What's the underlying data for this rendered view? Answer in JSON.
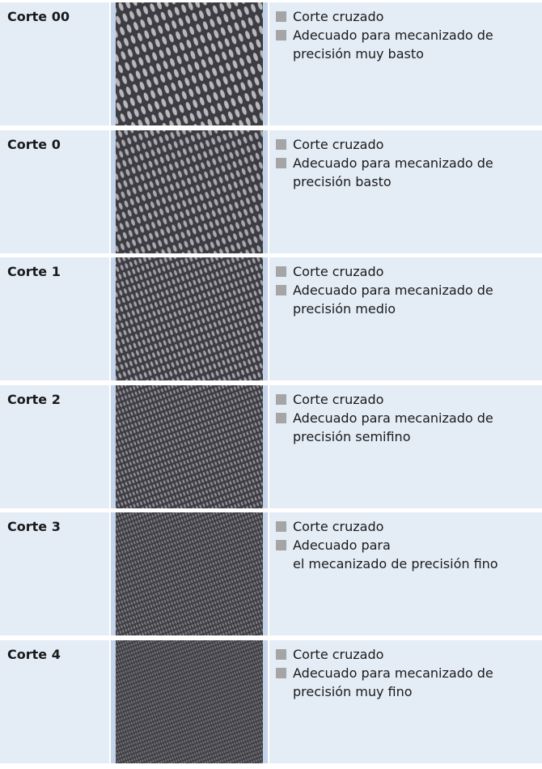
{
  "rows": [
    {
      "label": "Corte 00",
      "items": [
        [
          "Corte cruzado"
        ],
        [
          "Adecuado para mecanizado de",
          "precisión muy basto"
        ]
      ]
    },
    {
      "label": "Corte 0",
      "items": [
        [
          "Corte cruzado"
        ],
        [
          "Adecuado para mecanizado de",
          "precisión basto"
        ]
      ]
    },
    {
      "label": "Corte 1",
      "items": [
        [
          "Corte cruzado"
        ],
        [
          "Adecuado para mecanizado de",
          "precisión medio"
        ]
      ]
    },
    {
      "label": "Corte 2",
      "items": [
        [
          "Corte cruzado"
        ],
        [
          "Adecuado para mecanizado de",
          "precisión semifino"
        ]
      ]
    },
    {
      "label": "Corte 3",
      "items": [
        [
          "Corte cruzado"
        ],
        [
          "Adecuado para",
          "el mecanizado de precisión fino"
        ]
      ]
    },
    {
      "label": "Corte 4",
      "items": [
        [
          "Corte cruzado"
        ],
        [
          "Adecuado para mecanizado de",
          "precisión muy fino"
        ]
      ]
    }
  ]
}
